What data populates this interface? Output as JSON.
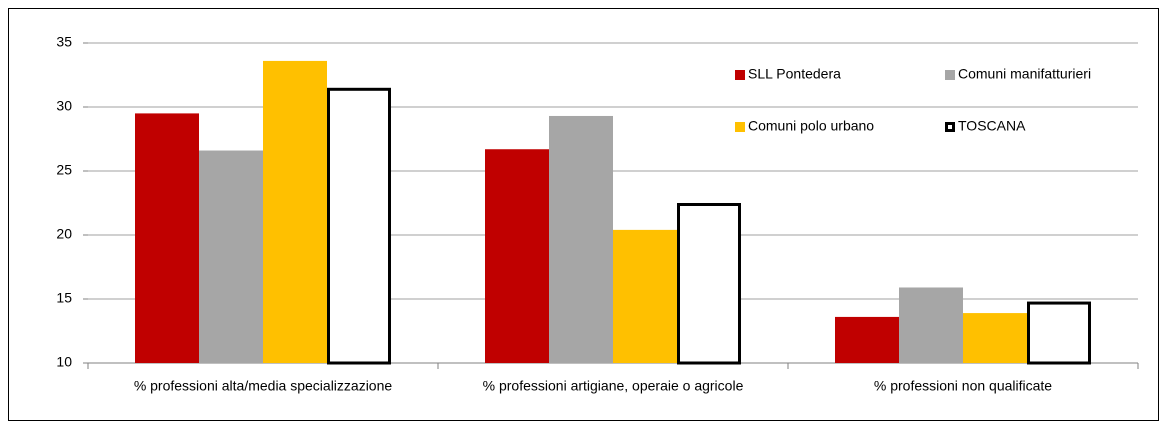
{
  "chart_data": {
    "type": "bar",
    "categories": [
      "% professioni alta/media specializzazione",
      "% professioni artigiane, operaie o agricole",
      "% professioni  non qualificate"
    ],
    "series": [
      {
        "name": "SLL Pontedera",
        "color": "#c00000",
        "values": [
          29.5,
          26.7,
          13.6
        ]
      },
      {
        "name": "Comuni manifatturieri",
        "color": "#a6a6a6",
        "values": [
          26.6,
          29.3,
          15.9
        ]
      },
      {
        "name": "Comuni polo urbano",
        "color": "#ffc000",
        "values": [
          33.6,
          20.4,
          13.9
        ]
      },
      {
        "name": "TOSCANA",
        "color": "#ffffff",
        "edgecolor": "#000000",
        "values": [
          31.5,
          22.5,
          14.8
        ]
      }
    ],
    "ylim": [
      10,
      35
    ],
    "yticks": [
      10,
      15,
      20,
      25,
      30,
      35
    ],
    "grid": true,
    "legend": "upper right"
  }
}
